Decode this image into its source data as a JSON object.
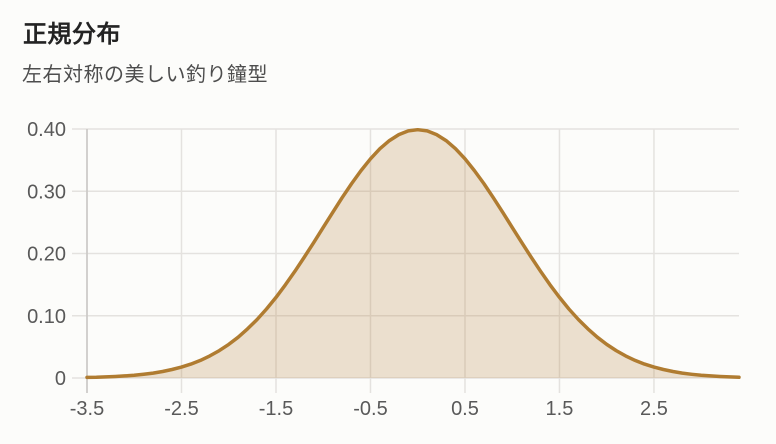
{
  "header": {
    "title": "正規分布",
    "subtitle": "左右対称の美しい釣り鐘型"
  },
  "chart_data": {
    "type": "area",
    "title": "正規分布",
    "subtitle": "左右対称の美しい釣り鐘型",
    "description": "standard normal probability density curve, symmetric bell shape",
    "xlabel": "",
    "ylabel": "",
    "xlim": [
      -3.5,
      3.4
    ],
    "ylim": [
      0,
      0.4
    ],
    "grid": true,
    "legend": "none",
    "x_start": -3.5,
    "x_step": 0.1,
    "values": [
      0.0009,
      0.0012,
      0.0017,
      0.0024,
      0.0033,
      0.0044,
      0.006,
      0.0079,
      0.0104,
      0.0136,
      0.0175,
      0.0224,
      0.0283,
      0.0355,
      0.044,
      0.054,
      0.0656,
      0.079,
      0.094,
      0.1109,
      0.1295,
      0.1497,
      0.1714,
      0.1942,
      0.2179,
      0.242,
      0.2661,
      0.2897,
      0.3123,
      0.3332,
      0.3521,
      0.3683,
      0.3814,
      0.391,
      0.397,
      0.3989,
      0.397,
      0.391,
      0.3814,
      0.3683,
      0.3521,
      0.3332,
      0.3123,
      0.2897,
      0.2661,
      0.242,
      0.2179,
      0.1942,
      0.1714,
      0.1497,
      0.1295,
      0.1109,
      0.094,
      0.079,
      0.0656,
      0.054,
      0.044,
      0.0355,
      0.0283,
      0.0224,
      0.0175,
      0.0136,
      0.0104,
      0.0079,
      0.006,
      0.0044,
      0.0033,
      0.0024,
      0.0017,
      0.0012
    ],
    "x_ticks": [
      {
        "value": -3.5,
        "label": "-3.5"
      },
      {
        "value": -2.5,
        "label": "-2.5"
      },
      {
        "value": -1.5,
        "label": "-1.5"
      },
      {
        "value": -0.5,
        "label": "-0.5"
      },
      {
        "value": 0.5,
        "label": "0.5"
      },
      {
        "value": 1.5,
        "label": "1.5"
      },
      {
        "value": 2.5,
        "label": "2.5"
      }
    ],
    "y_ticks": [
      {
        "value": 0,
        "label": "0"
      },
      {
        "value": 0.1,
        "label": "0.10"
      },
      {
        "value": 0.2,
        "label": "0.20"
      },
      {
        "value": 0.3,
        "label": "0.30"
      },
      {
        "value": 0.4,
        "label": "0.40"
      }
    ],
    "colors": {
      "line": "#b07c31",
      "fill": "rgba(176,124,49,0.22)",
      "grid": "#e4e2df",
      "axis": "#c8c6c3",
      "tick_label": "#595959"
    }
  }
}
